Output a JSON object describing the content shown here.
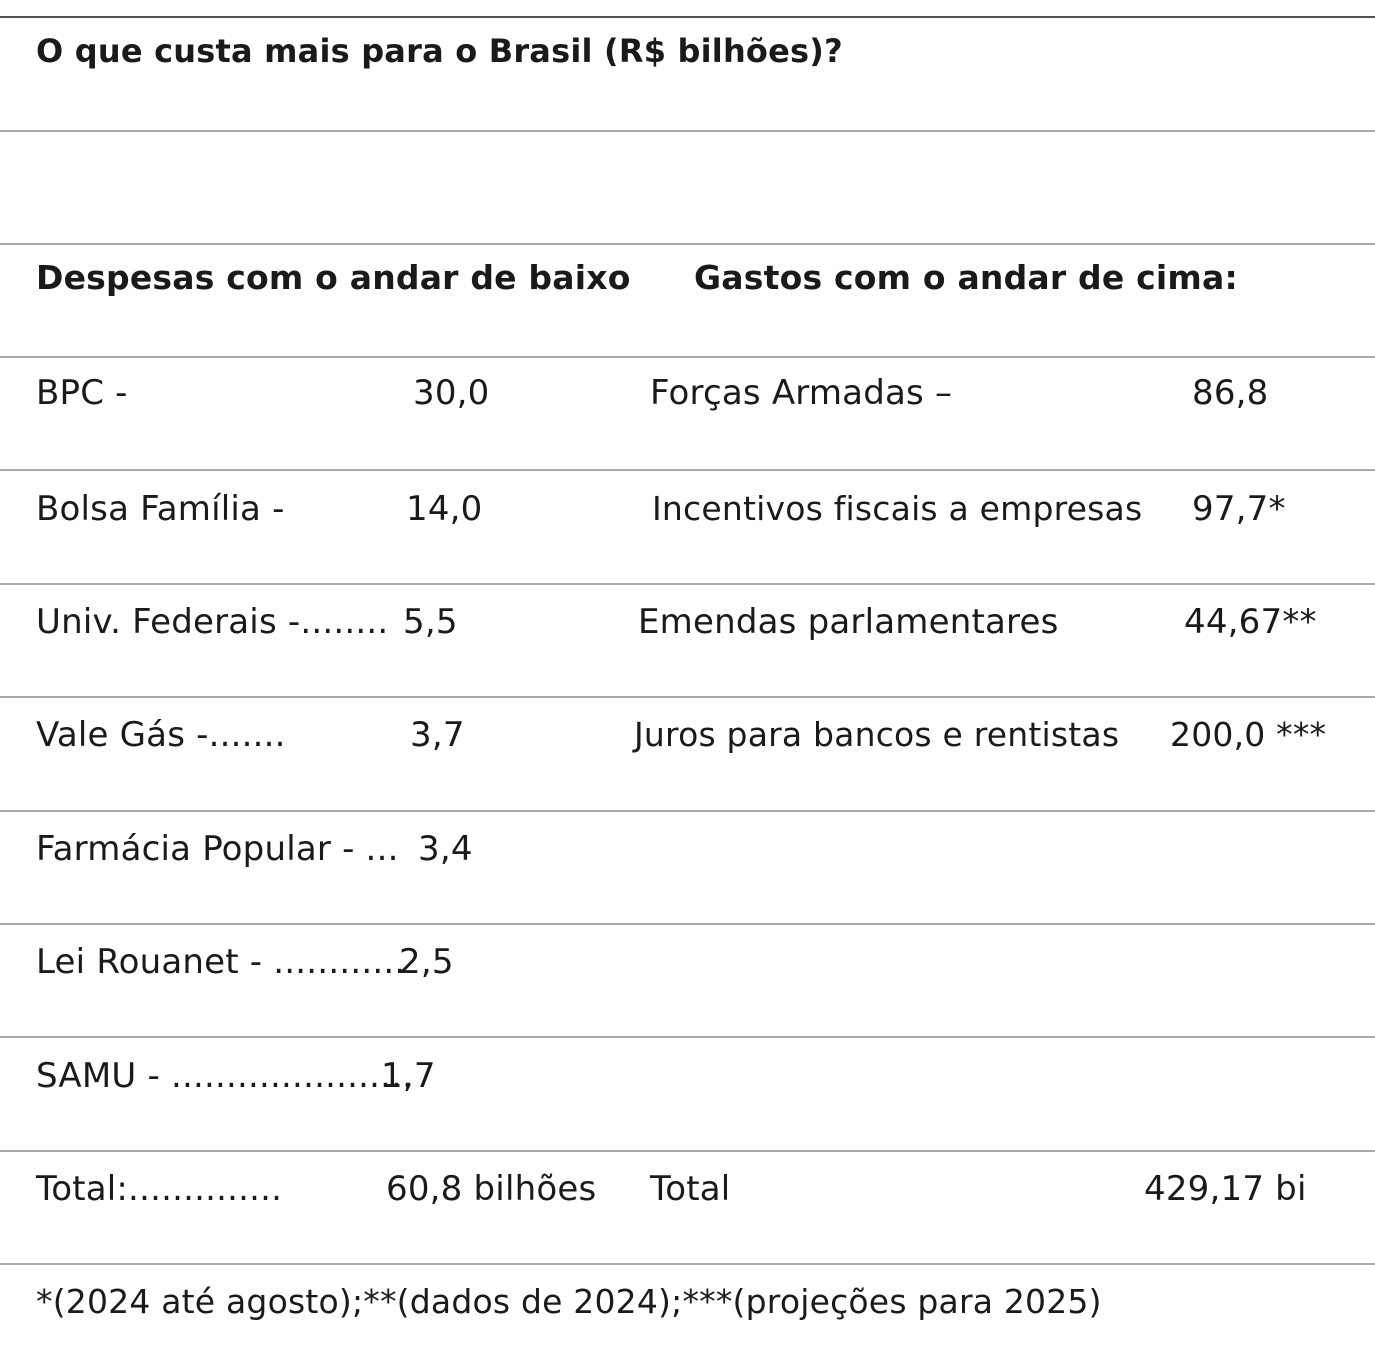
{
  "title": "O que custa mais para o Brasil (R$ bilhões)?",
  "headers": {
    "left": "Despesas com o andar de baixo",
    "right": "Gastos com o andar de cima:"
  },
  "rows": [
    {
      "left_label": "BPC -",
      "left_value": "30,0",
      "right_label": "Forças Armadas –",
      "right_value": "86,8"
    },
    {
      "left_label": "Bolsa Família -",
      "left_value": "14,0",
      "right_label": "Incentivos fiscais a empresas",
      "right_value": "97,7*"
    },
    {
      "left_label": "Univ. Federais -........",
      "left_value": "5,5",
      "right_label": "Emendas parlamentares",
      "right_value": "44,67**"
    },
    {
      "left_label": "Vale Gás -.......",
      "left_value": "3,7",
      "right_label": "Juros para bancos e rentistas",
      "right_value": "200,0 ***"
    },
    {
      "left_label": "Farmácia Popular - ...",
      "left_value": "3,4",
      "right_label": "",
      "right_value": ""
    },
    {
      "left_label": "Lei Rouanet - ............",
      "left_value": "2,5",
      "right_label": "",
      "right_value": ""
    },
    {
      "left_label": "SAMU - ......................",
      "left_value": "1,7",
      "right_label": "",
      "right_value": ""
    }
  ],
  "total": {
    "left_label": "Total:..............",
    "left_value": "60,8 bilhões",
    "right_label": "Total",
    "right_value": "429,17 bi"
  },
  "footnote": "*(2024 até agosto);**(dados de 2024);***(projeções para 2025)"
}
